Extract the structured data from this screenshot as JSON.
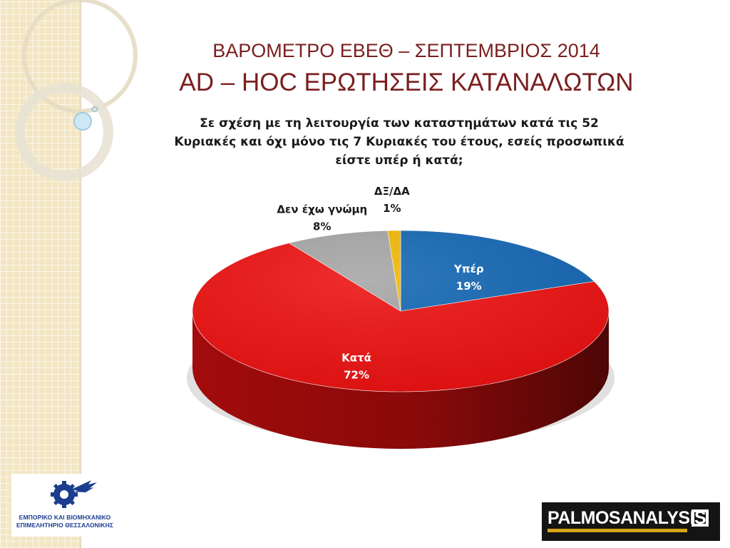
{
  "header": {
    "title_line1": "ΒΑΡΟΜΕΤΡΟ ΕΒΕΘ – ΣΕΠΤΕΜΒΡΙΟΣ 2014",
    "title_line2": "AD – HOC ΕΡΩΤΗΣΕΙΣ ΚΑΤΑΝΑΛΩΤΩΝ"
  },
  "question": [
    "Σε σχέση με τη λειτουργία των καταστημάτων κατά τις 52",
    "Κυριακές και όχι μόνο τις 7 Κυριακές του έτους, εσείς προσωπικά",
    "είστε υπέρ ή κατά;"
  ],
  "chart_data": {
    "type": "pie",
    "style": "3d",
    "start_angle": "12 o'clock, clockwise",
    "slices": [
      {
        "label": "Υπέρ",
        "value": 19,
        "value_label": "19%",
        "color": "#1467b5"
      },
      {
        "label": "Κατά",
        "value": 72,
        "value_label": "72%",
        "color": "#ee1111"
      },
      {
        "label": "Δεν έχω γνώμη",
        "value": 8,
        "value_label": "8%",
        "color": "#a6a6a6"
      },
      {
        "label": "ΔΞ/ΔΑ",
        "value": 1,
        "value_label": "1%",
        "color": "#f2b705"
      }
    ]
  },
  "logos": {
    "left_line1": "ΕΜΠΟΡΙΚΟ ΚΑΙ ΒΙΟΜΗΧΑΝΙΚΟ",
    "left_line2": "ΕΠΙΜΕΛΗΤΗΡΙΟ ΘΕΣΣΑΛΟΝΙΚΗΣ",
    "right_word1": "PALMOS",
    "right_word2": "ANALYSIS"
  },
  "colors": {
    "title": "#7a1f1f",
    "sidebar": "#f3e6c4",
    "logo_blue": "#1a3d8f"
  }
}
